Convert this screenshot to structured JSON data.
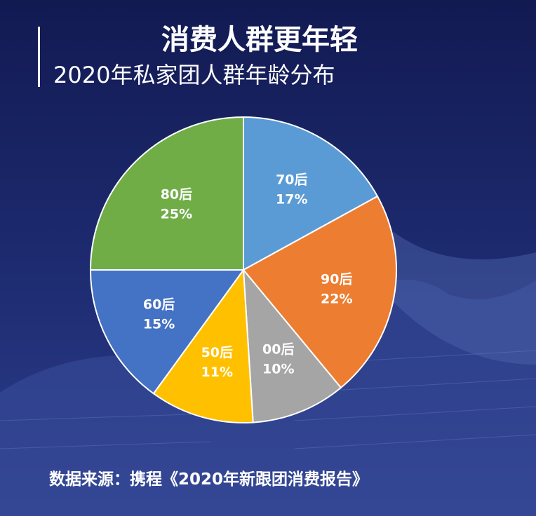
{
  "header": {
    "title": "消费人群更年轻",
    "subtitle": "2020年私家团人群年龄分布"
  },
  "chart_data": {
    "type": "pie",
    "categories": [
      "70后",
      "90后",
      "00后",
      "50后",
      "60后",
      "80后"
    ],
    "values": [
      17,
      22,
      10,
      11,
      15,
      25
    ],
    "value_labels": [
      "17%",
      "22%",
      "10%",
      "11%",
      "15%",
      "25%"
    ],
    "colors": [
      "#5b9bd5",
      "#ed7d31",
      "#a5a5a5",
      "#ffc000",
      "#4472c4",
      "#70ad47"
    ],
    "start": "12 o'clock, clockwise",
    "legend": "none"
  },
  "footer": {
    "source": "数据来源：携程《2020年新跟团消费报告》"
  },
  "colors": {
    "background_top": "#121a52",
    "background_bottom": "#2d3f8c",
    "text": "#ffffff"
  }
}
